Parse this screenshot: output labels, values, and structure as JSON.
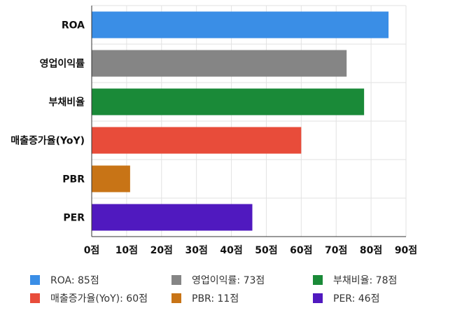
{
  "chart_data": {
    "type": "bar",
    "orientation": "horizontal",
    "categories": [
      "ROA",
      "영업이익률",
      "부채비율",
      "매출증가율(YoY)",
      "PBR",
      "PER"
    ],
    "values": [
      85,
      73,
      78,
      60,
      11,
      46
    ],
    "colors": [
      "#3a8ee6",
      "#858585",
      "#1a8a38",
      "#e84c3a",
      "#c87416",
      "#5019bf"
    ],
    "xlim": [
      0,
      90
    ],
    "xticks": [
      0,
      10,
      20,
      30,
      40,
      50,
      60,
      70,
      80,
      90
    ],
    "tick_suffix": "점",
    "grid": true,
    "legend_position": "bottom",
    "legend": [
      {
        "label": "ROA: 85점",
        "color": "#3a8ee6"
      },
      {
        "label": "영업이익률: 73점",
        "color": "#858585"
      },
      {
        "label": "부채비율: 78점",
        "color": "#1a8a38"
      },
      {
        "label": "매출증가율(YoY): 60점",
        "color": "#e84c3a"
      },
      {
        "label": "PBR: 11점",
        "color": "#c87416"
      },
      {
        "label": "PER: 46점",
        "color": "#5019bf"
      }
    ]
  }
}
